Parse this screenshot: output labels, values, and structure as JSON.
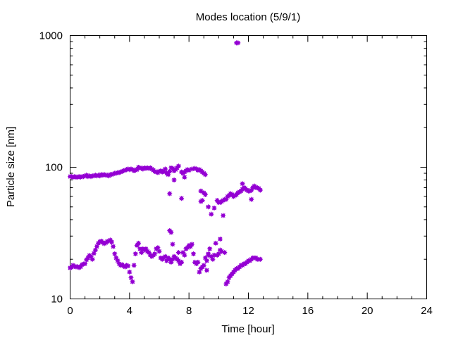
{
  "chart_data": {
    "type": "scatter",
    "title": "Modes location (5/9/1)",
    "xlabel": "Time [hour]",
    "ylabel": "Particle size [nm]",
    "xlim": [
      0,
      24
    ],
    "ylim": [
      10,
      1000
    ],
    "yscale": "log",
    "xticks": [
      0,
      4,
      8,
      12,
      16,
      20,
      24
    ],
    "yticks": [
      10,
      100,
      1000
    ],
    "grid": false,
    "marker_color": "#9400D3",
    "series": [
      {
        "points": [
          [
            0.0,
            85
          ],
          [
            0.1,
            85
          ],
          [
            0.2,
            84
          ],
          [
            0.3,
            85
          ],
          [
            0.4,
            84
          ],
          [
            0.5,
            84
          ],
          [
            0.6,
            85
          ],
          [
            0.7,
            84
          ],
          [
            0.8,
            85
          ],
          [
            0.9,
            85
          ],
          [
            1.0,
            86
          ],
          [
            1.1,
            87
          ],
          [
            1.2,
            85
          ],
          [
            1.3,
            86
          ],
          [
            1.4,
            85
          ],
          [
            1.5,
            86
          ],
          [
            1.6,
            86
          ],
          [
            1.7,
            87
          ],
          [
            1.8,
            86
          ],
          [
            1.9,
            87
          ],
          [
            2.0,
            86
          ],
          [
            2.1,
            88
          ],
          [
            2.2,
            87
          ],
          [
            2.3,
            88
          ],
          [
            2.4,
            87
          ],
          [
            2.5,
            87
          ],
          [
            2.6,
            86
          ],
          [
            2.7,
            88
          ],
          [
            2.8,
            88
          ],
          [
            2.9,
            89
          ],
          [
            3.0,
            90
          ],
          [
            3.1,
            90
          ],
          [
            3.2,
            91
          ],
          [
            3.3,
            91
          ],
          [
            3.4,
            92
          ],
          [
            3.5,
            93
          ],
          [
            3.6,
            94
          ],
          [
            3.7,
            95
          ],
          [
            3.8,
            96
          ],
          [
            3.9,
            97
          ],
          [
            4.0,
            96
          ],
          [
            4.1,
            97
          ],
          [
            4.2,
            96
          ],
          [
            4.3,
            94
          ],
          [
            4.4,
            95
          ],
          [
            4.5,
            96
          ],
          [
            4.6,
            100
          ],
          [
            4.7,
            99
          ],
          [
            4.8,
            98
          ],
          [
            4.9,
            97
          ],
          [
            5.0,
            99
          ],
          [
            5.1,
            98
          ],
          [
            5.2,
            99
          ],
          [
            5.3,
            98
          ],
          [
            5.4,
            99
          ],
          [
            5.5,
            97
          ],
          [
            5.6,
            95
          ],
          [
            5.7,
            93
          ],
          [
            5.8,
            92
          ],
          [
            5.9,
            91
          ],
          [
            6.0,
            93
          ],
          [
            6.1,
            94
          ],
          [
            6.2,
            92
          ],
          [
            6.3,
            93
          ],
          [
            6.4,
            97
          ],
          [
            6.5,
            90
          ],
          [
            6.6,
            88
          ],
          [
            6.7,
            93
          ],
          [
            6.8,
            99
          ],
          [
            6.9,
            98
          ],
          [
            7.0,
            94
          ],
          [
            7.1,
            96
          ],
          [
            7.2,
            99
          ],
          [
            7.3,
            102
          ],
          [
            7.5,
            92
          ],
          [
            7.6,
            90
          ],
          [
            7.7,
            92
          ],
          [
            7.8,
            94
          ],
          [
            7.9,
            96
          ],
          [
            8.0,
            95
          ],
          [
            8.2,
            97
          ],
          [
            8.4,
            98
          ],
          [
            8.5,
            97
          ],
          [
            8.6,
            95
          ],
          [
            8.7,
            96
          ],
          [
            8.8,
            94
          ],
          [
            8.9,
            92
          ],
          [
            9.0,
            90
          ],
          [
            9.1,
            88
          ],
          [
            6.7,
            63
          ],
          [
            7.0,
            80
          ],
          [
            7.5,
            58
          ],
          [
            7.7,
            84
          ],
          [
            8.8,
            55
          ],
          [
            8.9,
            56
          ],
          [
            8.8,
            66
          ],
          [
            9.0,
            64
          ],
          [
            9.1,
            62
          ],
          [
            9.3,
            50
          ],
          [
            9.5,
            44
          ],
          [
            9.7,
            49
          ],
          [
            9.9,
            56
          ],
          [
            10.0,
            54
          ],
          [
            10.1,
            54
          ],
          [
            10.2,
            55
          ],
          [
            10.3,
            56
          ],
          [
            10.4,
            57
          ],
          [
            10.5,
            57
          ],
          [
            10.6,
            60
          ],
          [
            10.7,
            61
          ],
          [
            10.8,
            63
          ],
          [
            10.9,
            62
          ],
          [
            11.0,
            60
          ],
          [
            11.1,
            61
          ],
          [
            11.2,
            62
          ],
          [
            11.3,
            64
          ],
          [
            11.4,
            65
          ],
          [
            11.5,
            66
          ],
          [
            11.6,
            68
          ],
          [
            11.7,
            70
          ],
          [
            11.8,
            69
          ],
          [
            11.9,
            67
          ],
          [
            12.0,
            66
          ],
          [
            12.1,
            66
          ],
          [
            12.2,
            67
          ],
          [
            12.3,
            70
          ],
          [
            12.4,
            72
          ],
          [
            12.5,
            70
          ],
          [
            12.6,
            70
          ],
          [
            12.7,
            69
          ],
          [
            12.8,
            67
          ],
          [
            10.3,
            43
          ],
          [
            11.6,
            75
          ],
          [
            12.2,
            57
          ],
          [
            11.2,
            880
          ],
          [
            11.3,
            880
          ]
        ]
      },
      {
        "points": [
          [
            0.0,
            17.2
          ],
          [
            0.1,
            17.4
          ],
          [
            0.2,
            18.0
          ],
          [
            0.3,
            17.7
          ],
          [
            0.4,
            17.5
          ],
          [
            0.5,
            17.6
          ],
          [
            0.6,
            17.3
          ],
          [
            0.7,
            17.5
          ],
          [
            0.8,
            18.2
          ],
          [
            0.9,
            18.4
          ],
          [
            1.0,
            18.5
          ],
          [
            1.1,
            19.8
          ],
          [
            1.2,
            20.5
          ],
          [
            1.3,
            21.4
          ],
          [
            1.4,
            21.0
          ],
          [
            1.5,
            20.0
          ],
          [
            1.6,
            22.2
          ],
          [
            1.7,
            23.5
          ],
          [
            1.8,
            25.0
          ],
          [
            1.9,
            26.5
          ],
          [
            2.0,
            27.2
          ],
          [
            2.1,
            27.5
          ],
          [
            2.2,
            26.8
          ],
          [
            2.3,
            26.3
          ],
          [
            2.4,
            26.7
          ],
          [
            2.5,
            27.3
          ],
          [
            2.6,
            27.5
          ],
          [
            2.7,
            28.0
          ],
          [
            2.8,
            27.0
          ],
          [
            2.9,
            25.0
          ],
          [
            3.0,
            22.0
          ],
          [
            3.1,
            20.5
          ],
          [
            3.2,
            19.5
          ],
          [
            3.3,
            18.5
          ],
          [
            3.4,
            18.0
          ],
          [
            3.5,
            18.2
          ],
          [
            3.6,
            17.8
          ],
          [
            3.7,
            17.5
          ],
          [
            3.8,
            18.0
          ],
          [
            3.9,
            17.8
          ],
          [
            4.0,
            16.0
          ],
          [
            4.1,
            14.5
          ],
          [
            4.2,
            13.5
          ],
          [
            4.3,
            18.0
          ],
          [
            4.4,
            22.0
          ],
          [
            4.5,
            25.5
          ],
          [
            4.6,
            26.5
          ],
          [
            4.7,
            24.0
          ],
          [
            4.8,
            22.5
          ],
          [
            4.9,
            24.0
          ],
          [
            5.0,
            23.5
          ],
          [
            5.1,
            24.0
          ],
          [
            5.2,
            23.0
          ],
          [
            5.3,
            22.5
          ],
          [
            5.4,
            21.5
          ],
          [
            5.5,
            21.0
          ],
          [
            5.6,
            21.5
          ],
          [
            5.7,
            22.0
          ],
          [
            5.8,
            24.0
          ],
          [
            5.9,
            24.5
          ],
          [
            6.0,
            23.0
          ],
          [
            6.1,
            20.5
          ],
          [
            6.2,
            20.0
          ],
          [
            6.3,
            20.5
          ],
          [
            6.4,
            21.0
          ],
          [
            6.5,
            19.5
          ],
          [
            6.6,
            20.5
          ],
          [
            6.7,
            20.0
          ],
          [
            6.8,
            19.0
          ],
          [
            6.9,
            20.0
          ],
          [
            7.0,
            21.0
          ],
          [
            7.1,
            20.5
          ],
          [
            7.2,
            20.0
          ],
          [
            7.3,
            19.5
          ],
          [
            7.4,
            18.5
          ],
          [
            7.5,
            19.0
          ],
          [
            7.6,
            22.5
          ],
          [
            7.7,
            21.5
          ],
          [
            7.8,
            24.0
          ],
          [
            7.9,
            24.5
          ],
          [
            8.0,
            25.5
          ],
          [
            8.1,
            25.0
          ],
          [
            8.2,
            26.0
          ],
          [
            8.3,
            22.0
          ],
          [
            8.4,
            19.0
          ],
          [
            8.5,
            18.5
          ],
          [
            8.6,
            19.0
          ],
          [
            8.7,
            16.0
          ],
          [
            8.8,
            17.0
          ],
          [
            8.9,
            17.5
          ],
          [
            9.0,
            18.0
          ],
          [
            9.1,
            20.5
          ],
          [
            9.2,
            19.5
          ],
          [
            9.3,
            22.0
          ],
          [
            9.4,
            24.0
          ],
          [
            9.5,
            21.0
          ],
          [
            9.6,
            20.0
          ],
          [
            9.7,
            21.5
          ],
          [
            9.8,
            26.5
          ],
          [
            9.9,
            21.5
          ],
          [
            10.0,
            22.0
          ],
          [
            10.1,
            23.5
          ],
          [
            10.2,
            23.0
          ],
          [
            10.4,
            22.5
          ],
          [
            10.5,
            13.0
          ],
          [
            10.6,
            13.5
          ],
          [
            10.7,
            14.5
          ],
          [
            10.8,
            15.0
          ],
          [
            10.9,
            15.5
          ],
          [
            11.0,
            16.0
          ],
          [
            11.1,
            16.5
          ],
          [
            11.2,
            17.0
          ],
          [
            11.3,
            17.0
          ],
          [
            11.4,
            17.5
          ],
          [
            11.5,
            18.0
          ],
          [
            11.6,
            18.0
          ],
          [
            11.7,
            18.5
          ],
          [
            11.8,
            18.5
          ],
          [
            11.9,
            19.0
          ],
          [
            12.0,
            19.5
          ],
          [
            12.1,
            19.5
          ],
          [
            12.2,
            20.0
          ],
          [
            12.3,
            20.5
          ],
          [
            12.4,
            20.5
          ],
          [
            12.5,
            20.5
          ],
          [
            12.6,
            20.0
          ],
          [
            12.7,
            20.0
          ],
          [
            12.8,
            20.0
          ],
          [
            6.7,
            33.0
          ],
          [
            6.8,
            32.0
          ],
          [
            6.9,
            26.0
          ],
          [
            7.3,
            22.5
          ],
          [
            10.1,
            28.5
          ],
          [
            9.2,
            16.5
          ],
          [
            9.3,
            21.5
          ]
        ]
      }
    ]
  }
}
